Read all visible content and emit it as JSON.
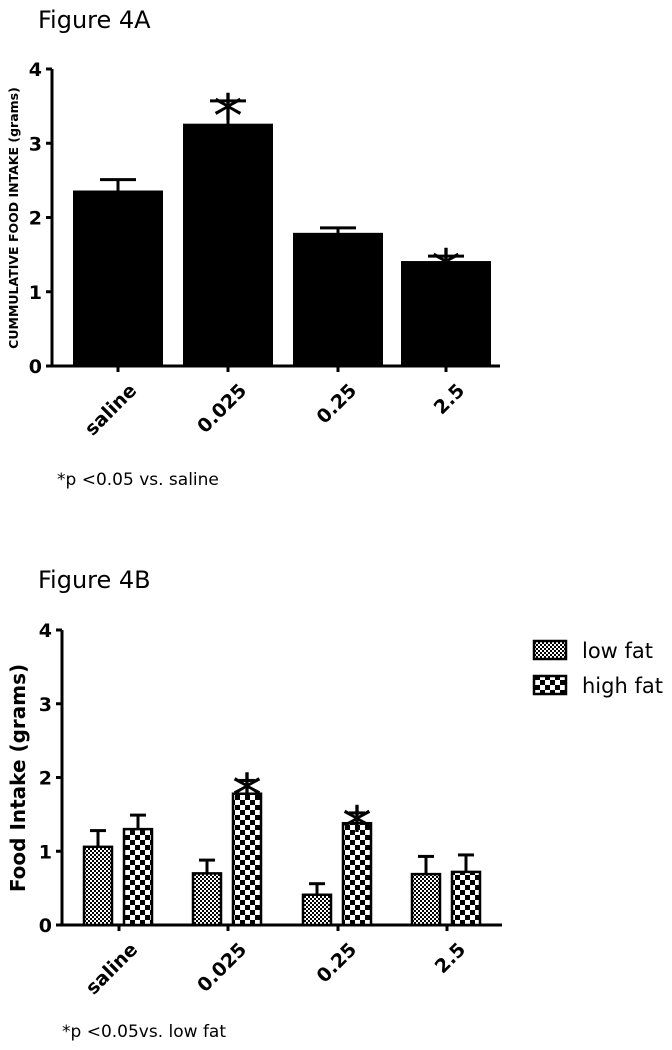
{
  "chart_data": [
    {
      "type": "bar",
      "title": "Figure 4A",
      "ylabel": "CUMMULATIVE FOOD INTAKE (grams)",
      "xlabel": "",
      "categories": [
        "saline",
        "0.025",
        "0.25",
        "2.5"
      ],
      "values": [
        2.35,
        3.25,
        1.78,
        1.4
      ],
      "errors": [
        0.16,
        0.32,
        0.08,
        0.08
      ],
      "significant": [
        false,
        true,
        false,
        true
      ],
      "ylim": [
        0,
        4
      ],
      "yticks": [
        "0",
        "1",
        "2",
        "3",
        "4"
      ],
      "significance_marker": "*",
      "footnote": "*p <0.05 vs. saline",
      "bar_color": "#000000",
      "grid": false
    },
    {
      "type": "bar",
      "title": "Figure 4B",
      "ylabel": "Food Intake (grams)",
      "xlabel": "",
      "categories": [
        "saline",
        "0.025",
        "0.25",
        "2.5"
      ],
      "series": [
        {
          "name": "low fat",
          "values": [
            1.06,
            0.7,
            0.41,
            0.69
          ],
          "errors": [
            0.22,
            0.18,
            0.15,
            0.24
          ],
          "significant": [
            false,
            false,
            false,
            false
          ],
          "pattern": "fine-checker"
        },
        {
          "name": "high fat",
          "values": [
            1.3,
            1.78,
            1.38,
            0.72
          ],
          "errors": [
            0.19,
            0.18,
            0.14,
            0.23
          ],
          "significant": [
            false,
            true,
            true,
            false
          ],
          "pattern": "coarse-checker"
        }
      ],
      "ylim": [
        0,
        4
      ],
      "yticks": [
        "0",
        "1",
        "2",
        "3",
        "4"
      ],
      "legend_position": "top-right",
      "significance_marker": "*",
      "footnote": "*p <0.05vs. low fat",
      "grid": false
    }
  ]
}
